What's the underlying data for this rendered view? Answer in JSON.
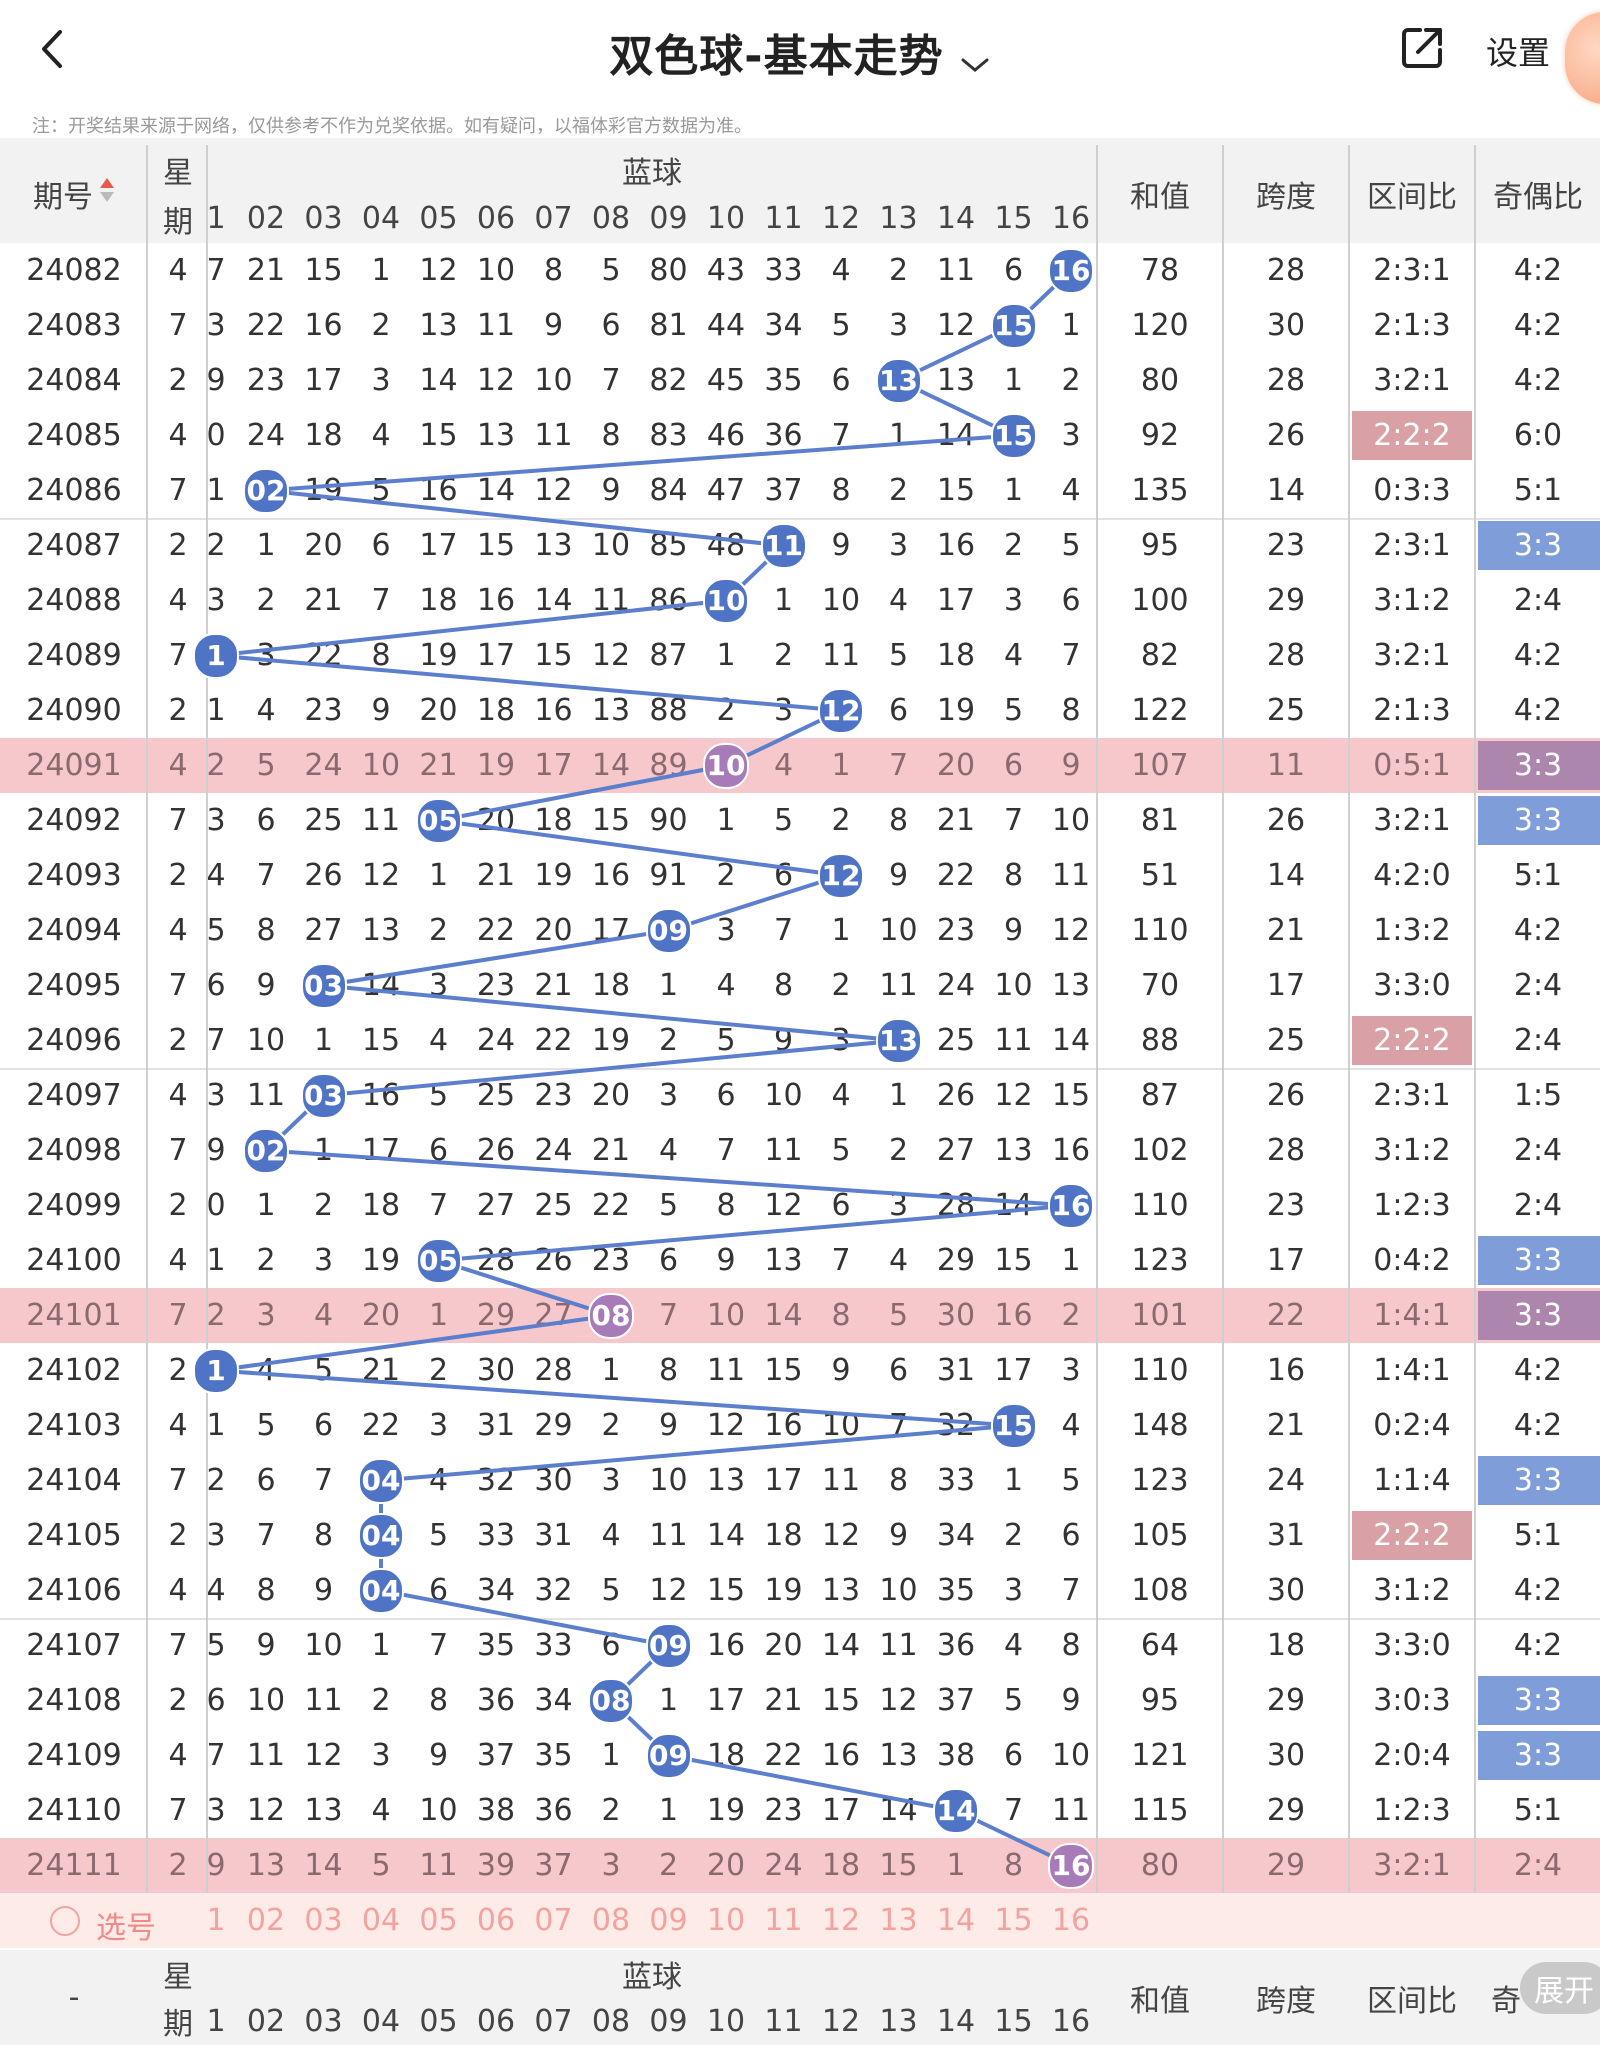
{
  "header": {
    "title": "双色球-基本走势",
    "settings_label": "设置",
    "notice": "注：开奖结果来源于网络，仅供参考不作为兑奖依据。如有疑问，以福体彩官方数据为准。"
  },
  "table_header": {
    "issue_label": "期号",
    "week_label_1": "星",
    "week_label_2": "期",
    "blue_label": "蓝球",
    "sum_label": "和值",
    "span_label": "跨度",
    "zone_label": "区间比",
    "parity_label": "奇偶比",
    "blue_numbers": [
      "1",
      "02",
      "03",
      "04",
      "05",
      "06",
      "07",
      "08",
      "09",
      "10",
      "11",
      "12",
      "13",
      "14",
      "15",
      "16"
    ]
  },
  "rows": [
    {
      "issue": "24082",
      "week": "4",
      "cells": [
        "7",
        "21",
        "15",
        "1",
        "12",
        "10",
        "8",
        "5",
        "80",
        "43",
        "33",
        "4",
        "2",
        "11",
        "6",
        "16"
      ],
      "sum": "78",
      "span": "28",
      "zone": "2:3:1",
      "parity": "4:2",
      "blue": 16,
      "hl": false,
      "zone_tag": "",
      "parity_tag": ""
    },
    {
      "issue": "24083",
      "week": "7",
      "cells": [
        "3",
        "22",
        "16",
        "2",
        "13",
        "11",
        "9",
        "6",
        "81",
        "44",
        "34",
        "5",
        "3",
        "12",
        "15",
        "1"
      ],
      "sum": "120",
      "span": "30",
      "zone": "2:1:3",
      "parity": "4:2",
      "blue": 15,
      "hl": false,
      "zone_tag": "",
      "parity_tag": ""
    },
    {
      "issue": "24084",
      "week": "2",
      "cells": [
        "9",
        "23",
        "17",
        "3",
        "14",
        "12",
        "10",
        "7",
        "82",
        "45",
        "35",
        "6",
        "13",
        "13",
        "1",
        "2"
      ],
      "sum": "80",
      "span": "28",
      "zone": "3:2:1",
      "parity": "4:2",
      "blue": 13,
      "hl": false,
      "zone_tag": "",
      "parity_tag": ""
    },
    {
      "issue": "24085",
      "week": "4",
      "cells": [
        "0",
        "24",
        "18",
        "4",
        "15",
        "13",
        "11",
        "8",
        "83",
        "46",
        "36",
        "7",
        "1",
        "14",
        "15",
        "3"
      ],
      "sum": "92",
      "span": "26",
      "zone": "2:2:2",
      "parity": "6:0",
      "blue": 15,
      "hl": false,
      "zone_tag": "red",
      "parity_tag": ""
    },
    {
      "issue": "24086",
      "week": "7",
      "cells": [
        "1",
        "02",
        "19",
        "5",
        "16",
        "14",
        "12",
        "9",
        "84",
        "47",
        "37",
        "8",
        "2",
        "15",
        "1",
        "4"
      ],
      "sum": "135",
      "span": "14",
      "zone": "0:3:3",
      "parity": "5:1",
      "blue": 2,
      "hl": false,
      "zone_tag": "",
      "parity_tag": ""
    },
    {
      "issue": "24087",
      "week": "2",
      "cells": [
        "2",
        "1",
        "20",
        "6",
        "17",
        "15",
        "13",
        "10",
        "85",
        "48",
        "11",
        "9",
        "3",
        "16",
        "2",
        "5"
      ],
      "sum": "95",
      "span": "23",
      "zone": "2:3:1",
      "parity": "3:3",
      "blue": 11,
      "hl": false,
      "zone_tag": "",
      "parity_tag": "blue"
    },
    {
      "issue": "24088",
      "week": "4",
      "cells": [
        "3",
        "2",
        "21",
        "7",
        "18",
        "16",
        "14",
        "11",
        "86",
        "10",
        "1",
        "10",
        "4",
        "17",
        "3",
        "6"
      ],
      "sum": "100",
      "span": "29",
      "zone": "3:1:2",
      "parity": "2:4",
      "blue": 10,
      "hl": false,
      "zone_tag": "",
      "parity_tag": ""
    },
    {
      "issue": "24089",
      "week": "7",
      "cells": [
        "1",
        "3",
        "22",
        "8",
        "19",
        "17",
        "15",
        "12",
        "87",
        "1",
        "2",
        "11",
        "5",
        "18",
        "4",
        "7"
      ],
      "sum": "82",
      "span": "28",
      "zone": "3:2:1",
      "parity": "4:2",
      "blue": 1,
      "hl": false,
      "zone_tag": "",
      "parity_tag": ""
    },
    {
      "issue": "24090",
      "week": "2",
      "cells": [
        "1",
        "4",
        "23",
        "9",
        "20",
        "18",
        "16",
        "13",
        "88",
        "2",
        "3",
        "12",
        "6",
        "19",
        "5",
        "8"
      ],
      "sum": "122",
      "span": "25",
      "zone": "2:1:3",
      "parity": "4:2",
      "blue": 12,
      "hl": false,
      "zone_tag": "",
      "parity_tag": ""
    },
    {
      "issue": "24091",
      "week": "4",
      "cells": [
        "2",
        "5",
        "24",
        "10",
        "21",
        "19",
        "17",
        "14",
        "89",
        "10",
        "4",
        "1",
        "7",
        "20",
        "6",
        "9"
      ],
      "sum": "107",
      "span": "11",
      "zone": "0:5:1",
      "parity": "3:3",
      "blue": 10,
      "hl": true,
      "zone_tag": "",
      "parity_tag": "purple"
    },
    {
      "issue": "24092",
      "week": "7",
      "cells": [
        "3",
        "6",
        "25",
        "11",
        "05",
        "20",
        "18",
        "15",
        "90",
        "1",
        "5",
        "2",
        "8",
        "21",
        "7",
        "10"
      ],
      "sum": "81",
      "span": "26",
      "zone": "3:2:1",
      "parity": "3:3",
      "blue": 5,
      "hl": false,
      "zone_tag": "",
      "parity_tag": "blue"
    },
    {
      "issue": "24093",
      "week": "2",
      "cells": [
        "4",
        "7",
        "26",
        "12",
        "1",
        "21",
        "19",
        "16",
        "91",
        "2",
        "6",
        "12",
        "9",
        "22",
        "8",
        "11"
      ],
      "sum": "51",
      "span": "14",
      "zone": "4:2:0",
      "parity": "5:1",
      "blue": 12,
      "hl": false,
      "zone_tag": "",
      "parity_tag": ""
    },
    {
      "issue": "24094",
      "week": "4",
      "cells": [
        "5",
        "8",
        "27",
        "13",
        "2",
        "22",
        "20",
        "17",
        "09",
        "3",
        "7",
        "1",
        "10",
        "23",
        "9",
        "12"
      ],
      "sum": "110",
      "span": "21",
      "zone": "1:3:2",
      "parity": "4:2",
      "blue": 9,
      "hl": false,
      "zone_tag": "",
      "parity_tag": ""
    },
    {
      "issue": "24095",
      "week": "7",
      "cells": [
        "6",
        "9",
        "03",
        "14",
        "3",
        "23",
        "21",
        "18",
        "1",
        "4",
        "8",
        "2",
        "11",
        "24",
        "10",
        "13"
      ],
      "sum": "70",
      "span": "17",
      "zone": "3:3:0",
      "parity": "2:4",
      "blue": 3,
      "hl": false,
      "zone_tag": "",
      "parity_tag": ""
    },
    {
      "issue": "24096",
      "week": "2",
      "cells": [
        "7",
        "10",
        "1",
        "15",
        "4",
        "24",
        "22",
        "19",
        "2",
        "5",
        "9",
        "3",
        "13",
        "25",
        "11",
        "14"
      ],
      "sum": "88",
      "span": "25",
      "zone": "2:2:2",
      "parity": "2:4",
      "blue": 13,
      "hl": false,
      "zone_tag": "red",
      "parity_tag": ""
    },
    {
      "issue": "24097",
      "week": "4",
      "cells": [
        "3",
        "11",
        "03",
        "16",
        "5",
        "25",
        "23",
        "20",
        "3",
        "6",
        "10",
        "4",
        "1",
        "26",
        "12",
        "15"
      ],
      "sum": "87",
      "span": "26",
      "zone": "2:3:1",
      "parity": "1:5",
      "blue": 3,
      "hl": false,
      "zone_tag": "",
      "parity_tag": ""
    },
    {
      "issue": "24098",
      "week": "7",
      "cells": [
        "9",
        "02",
        "1",
        "17",
        "6",
        "26",
        "24",
        "21",
        "4",
        "7",
        "11",
        "5",
        "2",
        "27",
        "13",
        "16"
      ],
      "sum": "102",
      "span": "28",
      "zone": "3:1:2",
      "parity": "2:4",
      "blue": 2,
      "hl": false,
      "zone_tag": "",
      "parity_tag": ""
    },
    {
      "issue": "24099",
      "week": "2",
      "cells": [
        "0",
        "1",
        "2",
        "18",
        "7",
        "27",
        "25",
        "22",
        "5",
        "8",
        "12",
        "6",
        "3",
        "28",
        "14",
        "16"
      ],
      "sum": "110",
      "span": "23",
      "zone": "1:2:3",
      "parity": "2:4",
      "blue": 16,
      "hl": false,
      "zone_tag": "",
      "parity_tag": ""
    },
    {
      "issue": "24100",
      "week": "4",
      "cells": [
        "1",
        "2",
        "3",
        "19",
        "05",
        "28",
        "26",
        "23",
        "6",
        "9",
        "13",
        "7",
        "4",
        "29",
        "15",
        "1"
      ],
      "sum": "123",
      "span": "17",
      "zone": "0:4:2",
      "parity": "3:3",
      "blue": 5,
      "hl": false,
      "zone_tag": "",
      "parity_tag": "blue"
    },
    {
      "issue": "24101",
      "week": "7",
      "cells": [
        "2",
        "3",
        "4",
        "20",
        "1",
        "29",
        "27",
        "08",
        "7",
        "10",
        "14",
        "8",
        "5",
        "30",
        "16",
        "2"
      ],
      "sum": "101",
      "span": "22",
      "zone": "1:4:1",
      "parity": "3:3",
      "blue": 8,
      "hl": true,
      "zone_tag": "",
      "parity_tag": "purple"
    },
    {
      "issue": "24102",
      "week": "2",
      "cells": [
        "1",
        "4",
        "5",
        "21",
        "2",
        "30",
        "28",
        "1",
        "8",
        "11",
        "15",
        "9",
        "6",
        "31",
        "17",
        "3"
      ],
      "sum": "110",
      "span": "16",
      "zone": "1:4:1",
      "parity": "4:2",
      "blue": 1,
      "hl": false,
      "zone_tag": "",
      "parity_tag": ""
    },
    {
      "issue": "24103",
      "week": "4",
      "cells": [
        "1",
        "5",
        "6",
        "22",
        "3",
        "31",
        "29",
        "2",
        "9",
        "12",
        "16",
        "10",
        "7",
        "32",
        "15",
        "4"
      ],
      "sum": "148",
      "span": "21",
      "zone": "0:2:4",
      "parity": "4:2",
      "blue": 15,
      "hl": false,
      "zone_tag": "",
      "parity_tag": ""
    },
    {
      "issue": "24104",
      "week": "7",
      "cells": [
        "2",
        "6",
        "7",
        "04",
        "4",
        "32",
        "30",
        "3",
        "10",
        "13",
        "17",
        "11",
        "8",
        "33",
        "1",
        "5"
      ],
      "sum": "123",
      "span": "24",
      "zone": "1:1:4",
      "parity": "3:3",
      "blue": 4,
      "hl": false,
      "zone_tag": "",
      "parity_tag": "blue"
    },
    {
      "issue": "24105",
      "week": "2",
      "cells": [
        "3",
        "7",
        "8",
        "04",
        "5",
        "33",
        "31",
        "4",
        "11",
        "14",
        "18",
        "12",
        "9",
        "34",
        "2",
        "6"
      ],
      "sum": "105",
      "span": "31",
      "zone": "2:2:2",
      "parity": "5:1",
      "blue": 4,
      "hl": false,
      "zone_tag": "red",
      "parity_tag": ""
    },
    {
      "issue": "24106",
      "week": "4",
      "cells": [
        "4",
        "8",
        "9",
        "04",
        "6",
        "34",
        "32",
        "5",
        "12",
        "15",
        "19",
        "13",
        "10",
        "35",
        "3",
        "7"
      ],
      "sum": "108",
      "span": "30",
      "zone": "3:1:2",
      "parity": "4:2",
      "blue": 4,
      "hl": false,
      "zone_tag": "",
      "parity_tag": ""
    },
    {
      "issue": "24107",
      "week": "7",
      "cells": [
        "5",
        "9",
        "10",
        "1",
        "7",
        "35",
        "33",
        "6",
        "09",
        "16",
        "20",
        "14",
        "11",
        "36",
        "4",
        "8"
      ],
      "sum": "64",
      "span": "18",
      "zone": "3:3:0",
      "parity": "4:2",
      "blue": 9,
      "hl": false,
      "zone_tag": "",
      "parity_tag": ""
    },
    {
      "issue": "24108",
      "week": "2",
      "cells": [
        "6",
        "10",
        "11",
        "2",
        "8",
        "36",
        "34",
        "08",
        "1",
        "17",
        "21",
        "15",
        "12",
        "37",
        "5",
        "9"
      ],
      "sum": "95",
      "span": "29",
      "zone": "3:0:3",
      "parity": "3:3",
      "blue": 8,
      "hl": false,
      "zone_tag": "",
      "parity_tag": "blue"
    },
    {
      "issue": "24109",
      "week": "4",
      "cells": [
        "7",
        "11",
        "12",
        "3",
        "9",
        "37",
        "35",
        "1",
        "09",
        "18",
        "22",
        "16",
        "13",
        "38",
        "6",
        "10"
      ],
      "sum": "121",
      "span": "30",
      "zone": "2:0:4",
      "parity": "3:3",
      "blue": 9,
      "hl": false,
      "zone_tag": "",
      "parity_tag": "blue"
    },
    {
      "issue": "24110",
      "week": "7",
      "cells": [
        "3",
        "12",
        "13",
        "4",
        "10",
        "38",
        "36",
        "2",
        "1",
        "19",
        "23",
        "17",
        "14",
        "14",
        "7",
        "11"
      ],
      "sum": "115",
      "span": "29",
      "zone": "1:2:3",
      "parity": "5:1",
      "blue": 14,
      "hl": false,
      "zone_tag": "",
      "parity_tag": ""
    },
    {
      "issue": "24111",
      "week": "2",
      "cells": [
        "9",
        "13",
        "14",
        "5",
        "11",
        "39",
        "37",
        "3",
        "2",
        "20",
        "24",
        "18",
        "15",
        "1",
        "8",
        "16"
      ],
      "sum": "80",
      "span": "29",
      "zone": "3:2:1",
      "parity": "2:4",
      "blue": 16,
      "hl": true,
      "zone_tag": "",
      "parity_tag": ""
    }
  ],
  "select_row": {
    "label": "选号",
    "numbers": [
      "1",
      "02",
      "03",
      "04",
      "05",
      "06",
      "07",
      "08",
      "09",
      "10",
      "11",
      "12",
      "13",
      "14",
      "15",
      "16"
    ]
  },
  "footer": {
    "issue_label": "-",
    "week_label_1": "星",
    "week_label_2": "期",
    "blue_label": "蓝球",
    "sum_label": "和值",
    "span_label": "跨度",
    "zone_label": "区间比",
    "parity_label": "奇",
    "expand_label": "展开",
    "blue_numbers": [
      "1",
      "02",
      "03",
      "04",
      "05",
      "06",
      "07",
      "08",
      "09",
      "10",
      "11",
      "12",
      "13",
      "14",
      "15",
      "16"
    ]
  },
  "colors": {
    "ball": "#4f74c6",
    "ball_highlight": "#a77ab8",
    "row_highlight": "#f6c8cc",
    "tag_red": "#d9a1a5",
    "tag_blue": "#7f9dd9",
    "tag_purple": "#ad86ae",
    "line": "#5b7fcc"
  }
}
